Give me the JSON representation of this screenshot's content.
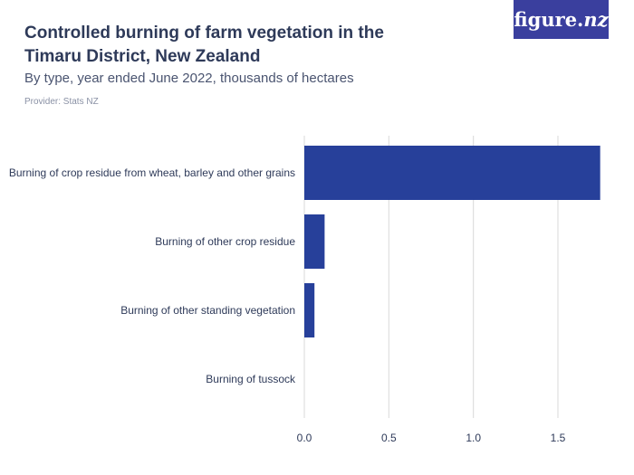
{
  "header": {
    "title": "Controlled burning of farm vegetation in the Timaru District, New Zealand",
    "subtitle": "By type, year ended June 2022, thousands of hectares",
    "provider": "Provider: Stats NZ",
    "logo_main": "figure.",
    "logo_suffix": "nz"
  },
  "colors": {
    "bar": "#27409a",
    "grid": "#d9d9d9",
    "logo_bg": "#3a3f9e"
  },
  "chart_data": {
    "type": "bar",
    "orientation": "horizontal",
    "title": "Controlled burning of farm vegetation in the Timaru District, New Zealand",
    "subtitle": "By type, year ended June 2022, thousands of hectares",
    "categories": [
      "Burning of crop residue from wheat, barley and other grains",
      "Burning of other crop residue",
      "Burning of other standing vegetation",
      "Burning of tussock"
    ],
    "values": [
      1.75,
      0.12,
      0.06,
      0
    ],
    "xlim": [
      0,
      1.8
    ],
    "xticks": [
      0,
      0.5,
      1,
      1.5
    ],
    "xtick_labels": [
      "0.0",
      "0.5",
      "1.0",
      "1.5"
    ],
    "grid": true
  }
}
